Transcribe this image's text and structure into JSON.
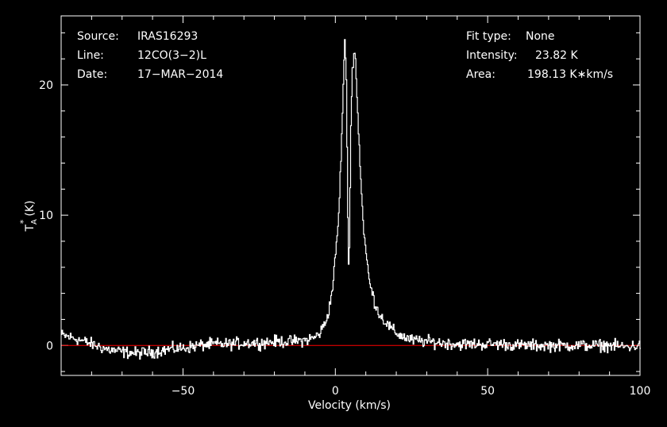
{
  "chart_data": {
    "type": "line",
    "xlabel": "Velocity (km/s)",
    "ylabel": "T",
    "ylabel_sub": "A",
    "ylabel_sup": "*",
    "ylabel_unit": "(K)",
    "xlim": [
      -90,
      100
    ],
    "ylim": [
      -2.3,
      25.3
    ],
    "x_ticks": [
      -50,
      0,
      50,
      100
    ],
    "x_tick_labels": [
      "−50",
      "0",
      "50",
      "100"
    ],
    "y_ticks": [
      0,
      10,
      20
    ],
    "y_tick_labels": [
      "0",
      "10",
      "20"
    ],
    "baseline": 0,
    "colors": {
      "spectrum": "#ffffff",
      "baseline": "#ff0000",
      "frame": "#ffffff",
      "background": "#000000"
    },
    "info_left": [
      {
        "key": "Source:",
        "value": "IRAS16293"
      },
      {
        "key": "Line:",
        "value": "12CO(3−2)L"
      },
      {
        "key": "Date:",
        "value": "17−MAR−2014"
      }
    ],
    "info_right": [
      {
        "key": "Fit type:",
        "value": "None"
      },
      {
        "key": "Intensity:",
        "value": "23.82 K"
      },
      {
        "key": "Area:",
        "value": "198.13 K∗km/s"
      }
    ],
    "series": [
      {
        "x": [
          -90,
          -85,
          -80,
          -75,
          -70,
          -65,
          -60,
          -55,
          -50,
          -45,
          -40,
          -35,
          -30,
          -25,
          -20,
          -15,
          -10,
          -7,
          -5,
          -3,
          -2,
          -1,
          0,
          1,
          2,
          3,
          3.5,
          4,
          4.3,
          4.6,
          5,
          5.5,
          6,
          6.5,
          7,
          8,
          9,
          10,
          11,
          12,
          13,
          14,
          15,
          17,
          19,
          21,
          23,
          25,
          30,
          35,
          40,
          45,
          50,
          55,
          60,
          65,
          70,
          75,
          80,
          85,
          90,
          95,
          100
        ],
        "y": [
          0.8,
          0.5,
          0.1,
          -0.3,
          -0.5,
          -0.6,
          -0.5,
          -0.3,
          -0.2,
          0.0,
          0.1,
          0.1,
          0.2,
          0.2,
          0.3,
          0.3,
          0.4,
          0.6,
          1.0,
          2.0,
          3.0,
          4.5,
          7.0,
          10.0,
          16.0,
          23.8,
          20.0,
          10.0,
          5.5,
          9.0,
          17.0,
          21.0,
          22.8,
          22.0,
          19.0,
          14.0,
          9.5,
          7.0,
          5.0,
          4.0,
          3.2,
          2.6,
          2.2,
          1.6,
          1.1,
          0.8,
          0.6,
          0.4,
          0.3,
          0.2,
          0.1,
          0.1,
          0.1,
          0.1,
          0.0,
          0.0,
          0.0,
          0.0,
          0.0,
          0.0,
          0.0,
          -0.1,
          0.0
        ]
      }
    ]
  }
}
